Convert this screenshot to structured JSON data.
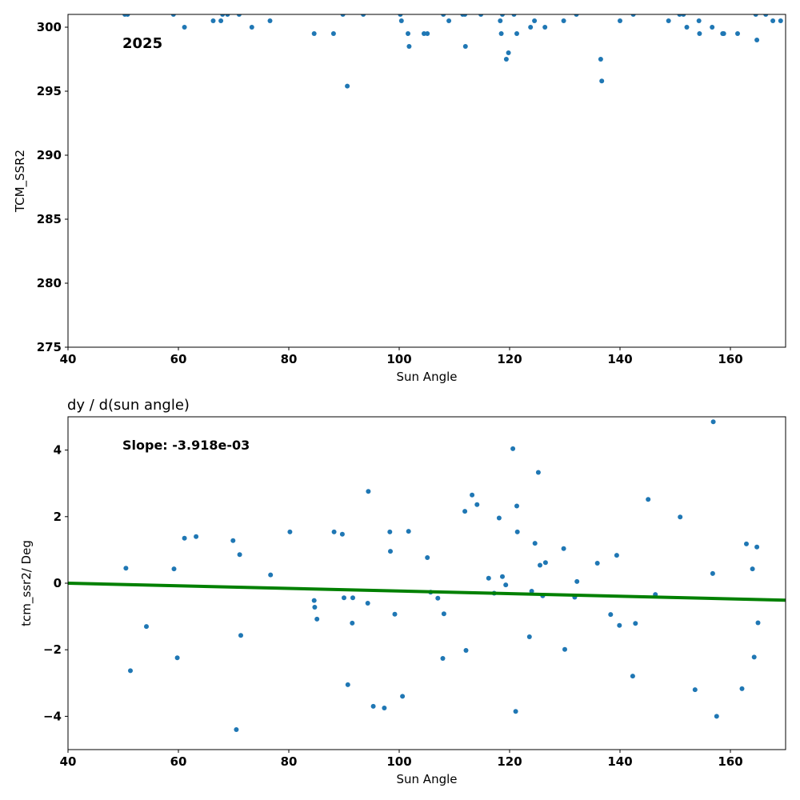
{
  "chart_data": [
    {
      "type": "scatter",
      "title": "",
      "xlabel": "Sun Angle",
      "ylabel": "TCM_SSR2",
      "xlim": [
        40,
        170
      ],
      "ylim": [
        275,
        301
      ],
      "xticks": [
        40,
        60,
        80,
        100,
        120,
        140,
        160
      ],
      "yticks": [
        275,
        280,
        285,
        290,
        295,
        300
      ],
      "grid": false,
      "annotation": "2025",
      "marker_color": "#1f77b4",
      "series": [
        {
          "x": [
            50.3,
            50.8,
            59.1,
            61.1,
            66.3,
            67.7,
            68.0,
            68.9,
            71.0,
            73.3,
            76.6,
            84.6,
            88.1,
            89.8,
            90.6,
            93.5,
            100.2,
            100.4,
            101.6,
            101.8,
            104.5,
            105.1,
            108.0,
            109.0,
            111.5,
            111.9,
            112.0,
            114.8,
            118.3,
            118.5,
            118.7,
            119.4,
            119.8,
            120.8,
            121.3,
            123.8,
            124.5,
            126.4,
            129.8,
            132.1,
            136.5,
            136.7,
            140.0,
            142.4,
            148.8,
            150.8,
            151.5,
            152.1,
            154.3,
            154.4,
            156.7,
            158.6,
            158.8,
            161.3,
            164.6,
            164.8,
            166.4,
            167.7,
            169.1
          ],
          "y": [
            301,
            301,
            301,
            300,
            300.5,
            300.5,
            301,
            301,
            301,
            300,
            300.5,
            299.5,
            299.5,
            301,
            295.4,
            301,
            301,
            300.5,
            299.5,
            298.5,
            299.5,
            299.5,
            301,
            300.5,
            301,
            301,
            298.5,
            301,
            300.5,
            299.5,
            301,
            297.5,
            298,
            301,
            299.5,
            300,
            300.5,
            300,
            300.5,
            301,
            297.5,
            295.8,
            300.5,
            301,
            300.5,
            301,
            301,
            300,
            300.5,
            299.5,
            300,
            299.5,
            299.5,
            299.5,
            301,
            299,
            301,
            300.5,
            300.5
          ]
        }
      ]
    },
    {
      "type": "scatter",
      "title": "dy / d(sun angle)",
      "xlabel": "Sun Angle",
      "ylabel": "tcm_ssr2/ Deg",
      "xlim": [
        40,
        170
      ],
      "ylim": [
        -5,
        5
      ],
      "xticks": [
        40,
        60,
        80,
        100,
        120,
        140,
        160
      ],
      "yticks": [
        -4,
        -2,
        0,
        2,
        4
      ],
      "grid": false,
      "annotation": "Slope: -3.918e-03",
      "marker_color": "#1f77b4",
      "fit_line": {
        "slope": -0.003918,
        "intercept": 0.0,
        "x_range": [
          40,
          170
        ],
        "color": "#008000"
      },
      "series": [
        {
          "x": [
            50.5,
            51.3,
            54.2,
            59.2,
            59.8,
            61.1,
            63.2,
            69.9,
            70.5,
            71.1,
            71.3,
            76.7,
            80.2,
            84.6,
            84.7,
            85.1,
            88.2,
            89.7,
            90.0,
            90.7,
            91.5,
            91.6,
            94.3,
            94.4,
            95.3,
            97.3,
            98.3,
            98.4,
            99.2,
            100.6,
            101.7,
            105.1,
            105.7,
            107.0,
            107.9,
            108.1,
            111.9,
            112.1,
            113.2,
            114.1,
            116.2,
            117.2,
            118.1,
            118.7,
            119.3,
            120.6,
            121.1,
            121.3,
            121.4,
            123.6,
            124.0,
            124.6,
            125.2,
            125.5,
            126.0,
            126.5,
            129.8,
            130.0,
            131.8,
            132.2,
            135.9,
            138.3,
            139.4,
            139.9,
            142.3,
            142.8,
            145.1,
            146.4,
            150.9,
            153.6,
            156.8,
            156.9,
            157.5,
            162.1,
            162.9,
            164.0,
            164.3,
            164.8,
            165.0
          ],
          "y": [
            0.45,
            -2.63,
            -1.3,
            0.43,
            -2.24,
            1.35,
            1.4,
            1.28,
            -4.4,
            0.86,
            -1.57,
            0.25,
            1.54,
            -0.52,
            -0.72,
            -1.08,
            1.54,
            1.47,
            -0.44,
            -3.05,
            -1.2,
            -0.44,
            -0.6,
            2.76,
            -3.7,
            -3.75,
            1.54,
            0.96,
            -0.93,
            -3.4,
            1.56,
            0.77,
            -0.27,
            -0.45,
            -2.26,
            -0.92,
            2.16,
            -2.02,
            2.65,
            2.36,
            0.15,
            -0.3,
            1.96,
            0.2,
            -0.05,
            4.04,
            -3.85,
            2.32,
            1.54,
            -1.61,
            -0.24,
            1.2,
            3.33,
            0.54,
            -0.38,
            0.62,
            1.04,
            -1.99,
            -0.42,
            0.05,
            0.6,
            -0.94,
            0.84,
            -1.27,
            -2.79,
            -1.21,
            2.52,
            -0.34,
            1.99,
            -3.2,
            0.29,
            4.85,
            -4.0,
            -3.17,
            1.18,
            0.43,
            -2.22,
            1.09,
            -1.19
          ]
        }
      ]
    }
  ]
}
